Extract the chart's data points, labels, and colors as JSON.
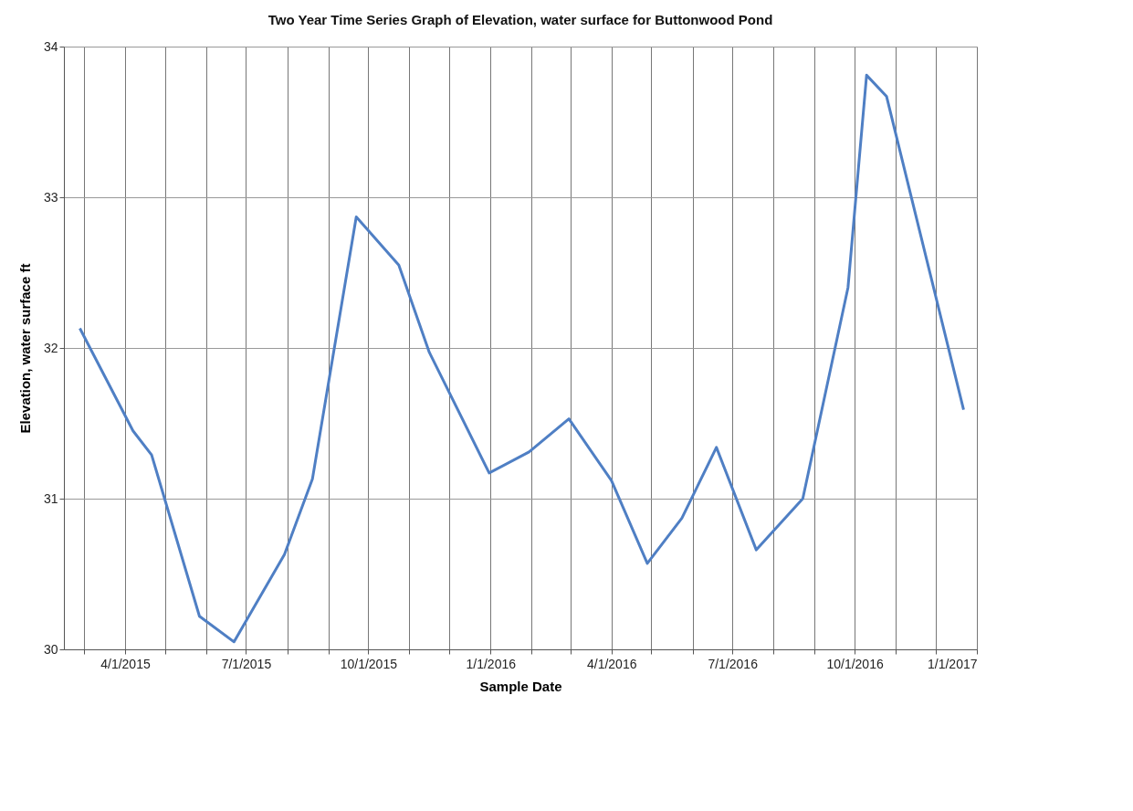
{
  "chart_data": {
    "type": "line",
    "title": "Two Year Time Series Graph of Elevation, water surface for Buttonwood Pond",
    "xlabel": "Sample Date",
    "ylabel": "Elevation, water surface ft",
    "x": [
      "2015-02-26",
      "2015-04-07",
      "2015-04-21",
      "2015-05-27",
      "2015-06-22",
      "2015-07-30",
      "2015-08-20",
      "2015-09-22",
      "2015-10-24",
      "2015-11-16",
      "2015-12-31",
      "2016-01-30",
      "2016-02-29",
      "2016-04-01",
      "2016-04-28",
      "2016-05-24",
      "2016-06-19",
      "2016-07-19",
      "2016-08-23",
      "2016-09-26",
      "2016-10-10",
      "2016-10-25",
      "2016-12-22"
    ],
    "series": [
      {
        "color": "#4f7fc4",
        "values": [
          32.13,
          31.45,
          31.29,
          30.22,
          30.05,
          30.63,
          31.13,
          32.87,
          32.55,
          31.97,
          31.17,
          31.31,
          31.53,
          31.12,
          30.57,
          30.87,
          31.34,
          30.66,
          31.0,
          32.4,
          33.81,
          33.67,
          31.59
        ]
      }
    ],
    "xlim": [
      "2015-02-14",
      "2017-01-01"
    ],
    "xticks": [
      {
        "value": "2015-03-01",
        "label": null
      },
      {
        "value": "2015-04-01",
        "label": "4/1/2015"
      },
      {
        "value": "2015-05-01",
        "label": null
      },
      {
        "value": "2015-06-01",
        "label": null
      },
      {
        "value": "2015-07-01",
        "label": "7/1/2015"
      },
      {
        "value": "2015-08-01",
        "label": null
      },
      {
        "value": "2015-09-01",
        "label": null
      },
      {
        "value": "2015-10-01",
        "label": "10/1/2015"
      },
      {
        "value": "2015-11-01",
        "label": null
      },
      {
        "value": "2015-12-01",
        "label": null
      },
      {
        "value": "2016-01-01",
        "label": "1/1/2016"
      },
      {
        "value": "2016-02-01",
        "label": null
      },
      {
        "value": "2016-03-01",
        "label": null
      },
      {
        "value": "2016-04-01",
        "label": "4/1/2016"
      },
      {
        "value": "2016-05-01",
        "label": null
      },
      {
        "value": "2016-06-01",
        "label": null
      },
      {
        "value": "2016-07-01",
        "label": "7/1/2016"
      },
      {
        "value": "2016-08-01",
        "label": null
      },
      {
        "value": "2016-09-01",
        "label": null
      },
      {
        "value": "2016-10-01",
        "label": "10/1/2016"
      },
      {
        "value": "2016-11-01",
        "label": null
      },
      {
        "value": "2016-12-01",
        "label": null
      },
      {
        "value": "2017-01-01",
        "label": "1/1/2017"
      }
    ],
    "ylim": [
      30,
      34
    ],
    "yticks": [
      30,
      31,
      32,
      33,
      34
    ],
    "grid": true,
    "marker": "none",
    "line_style": "solid"
  }
}
